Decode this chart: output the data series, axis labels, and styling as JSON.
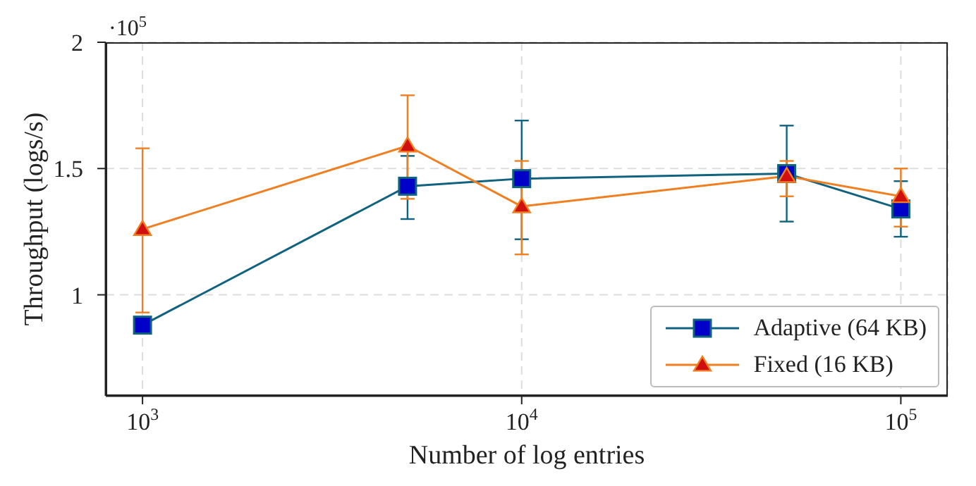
{
  "chart_data": {
    "type": "line",
    "xlabel": "Number of log entries",
    "ylabel": "Throughput (logs/s)",
    "annotations": [
      "·10$^{5}$"
    ],
    "x": [
      1000,
      5000,
      10000,
      50000,
      100000
    ],
    "series": [
      {
        "name": "Adaptive (64 KB)",
        "color": "#10627f",
        "marker": "square",
        "values": [
          0.88,
          1.43,
          1.46,
          1.48,
          1.34
        ],
        "errors": [
          null,
          [
            1.3,
            1.55
          ],
          [
            1.22,
            1.69
          ],
          [
            1.29,
            1.67
          ],
          [
            1.23,
            1.45
          ]
        ]
      },
      {
        "name": "Fixed (16 KB)",
        "color": "#f07f22",
        "marker": "triangle",
        "values": [
          1.26,
          1.59,
          1.35,
          1.47,
          1.39
        ],
        "errors": [
          [
            0.93,
            1.58
          ],
          [
            1.38,
            1.79
          ],
          [
            1.16,
            1.53
          ],
          [
            1.39,
            1.53
          ],
          [
            1.27,
            1.5
          ]
        ]
      }
    ],
    "log": "x",
    "xlim": [
      800,
      133000
    ],
    "xticks": [
      {
        "value": 1000,
        "label": "10$^{3}$"
      },
      {
        "value": 10000,
        "label": "10$^{4}$"
      },
      {
        "value": 100000,
        "label": "10$^{5}$"
      }
    ],
    "ylim": [
      0.6,
      2
    ],
    "yticks": [
      1,
      1.5,
      2
    ],
    "grid": true,
    "legend": "bottom right",
    "line_style": "solid"
  }
}
